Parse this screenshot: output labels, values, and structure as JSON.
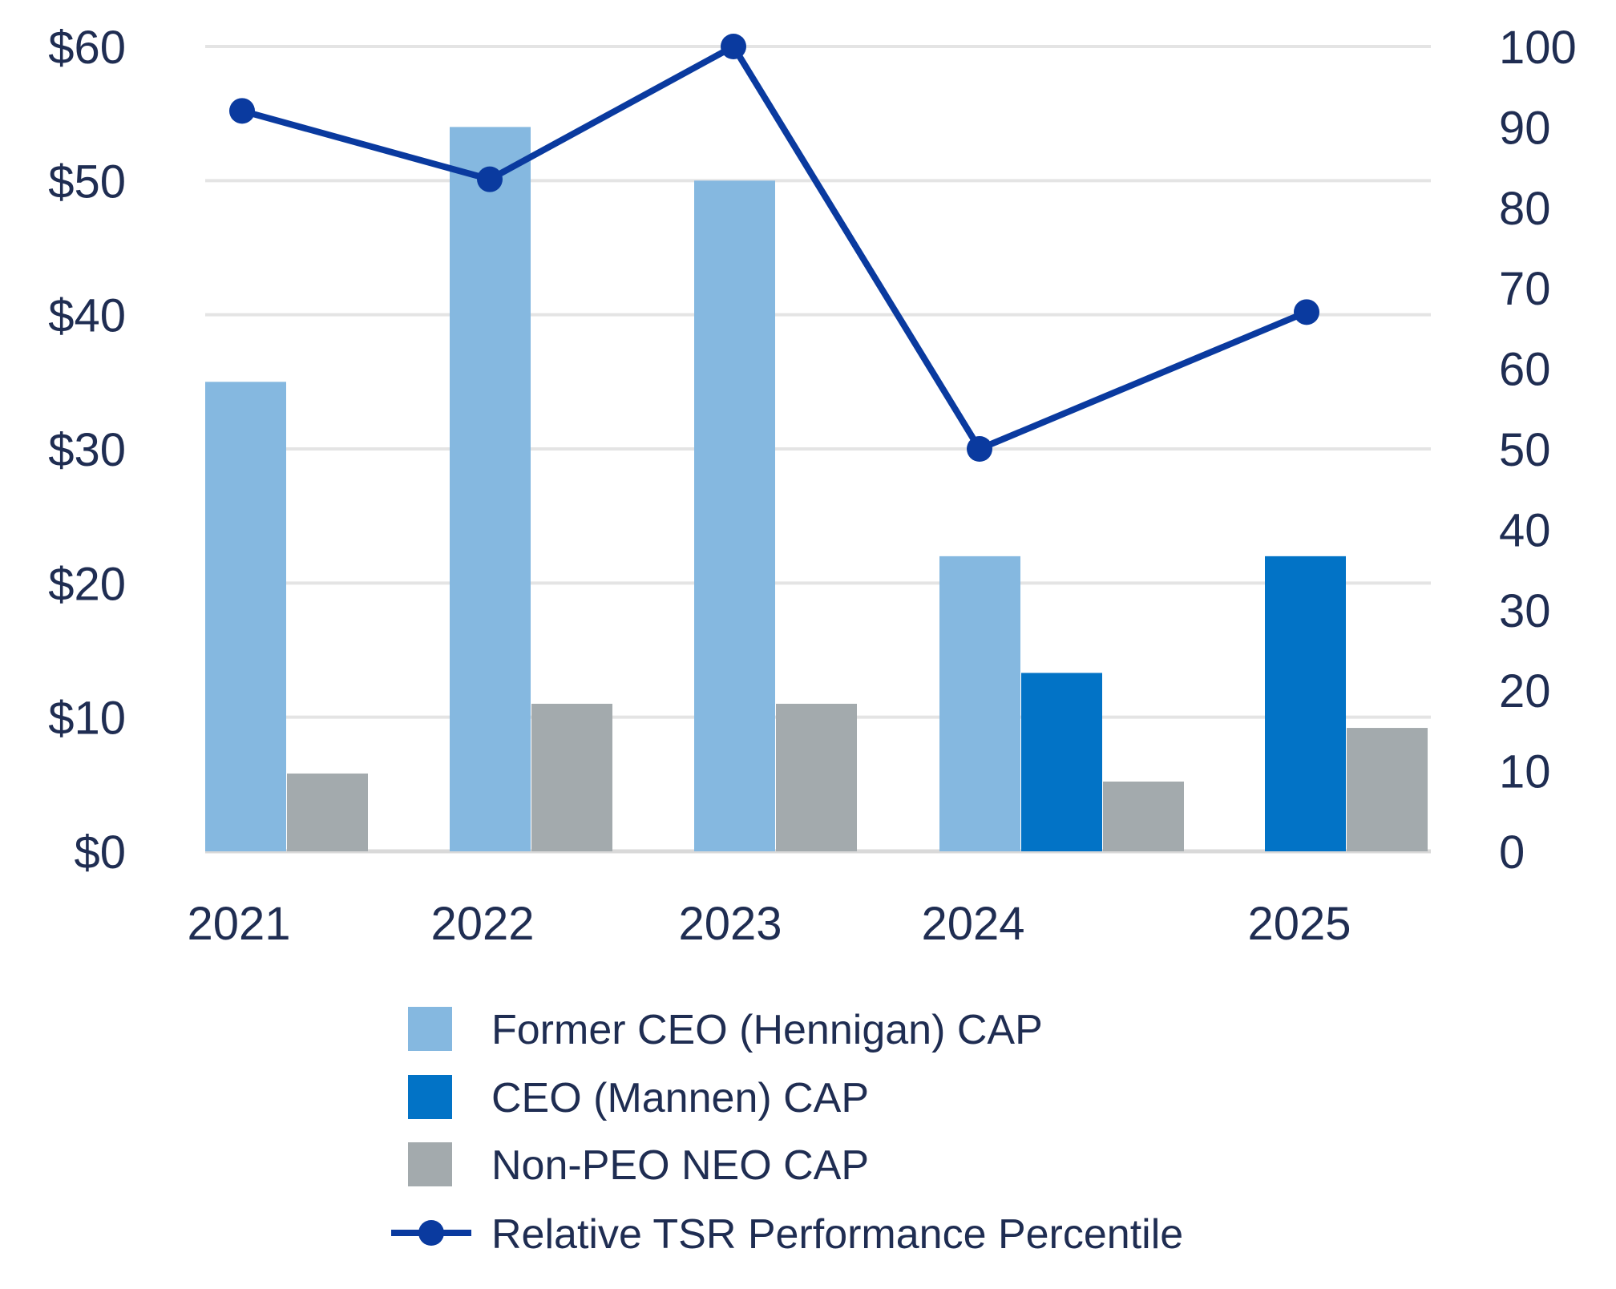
{
  "chart_data": {
    "type": "bar",
    "title": "",
    "xlabel": "",
    "ylabel": "",
    "categories": [
      "2021",
      "2022",
      "2023",
      "2024",
      "2025"
    ],
    "ylim": [
      0,
      60
    ],
    "y_ticks": [
      "$0",
      "$10",
      "$20",
      "$30",
      "$40",
      "$50",
      "$60"
    ],
    "y2lim": [
      0,
      100
    ],
    "y2_ticks": [
      "0",
      "10",
      "20",
      "30",
      "40",
      "50",
      "60",
      "70",
      "80",
      "90",
      "100"
    ],
    "grid": true,
    "series": [
      {
        "name": "Former CEO (Hennigan) CAP",
        "kind": "bar",
        "axis": "left",
        "color": "#85b8e0",
        "values": [
          35,
          54,
          50,
          22,
          null
        ]
      },
      {
        "name": "CEO (Mannen) CAP",
        "kind": "bar",
        "axis": "left",
        "color": "#0273c6",
        "values": [
          null,
          null,
          null,
          13.3,
          22
        ]
      },
      {
        "name": "Non-PEO NEO CAP",
        "kind": "bar",
        "axis": "left",
        "color": "#a3aaad",
        "values": [
          5.8,
          11,
          11,
          5.2,
          9.2
        ]
      },
      {
        "name": "Relative TSR Performance Percentile",
        "kind": "line",
        "axis": "right",
        "color": "#0a3a9f",
        "values": [
          92,
          83.5,
          100,
          50,
          67
        ]
      }
    ],
    "legend": {
      "position": "bottom",
      "items": [
        "Former CEO (Hennigan) CAP",
        "CEO (Mannen) CAP",
        "Non-PEO NEO CAP",
        "Relative TSR Performance Percentile"
      ]
    }
  }
}
